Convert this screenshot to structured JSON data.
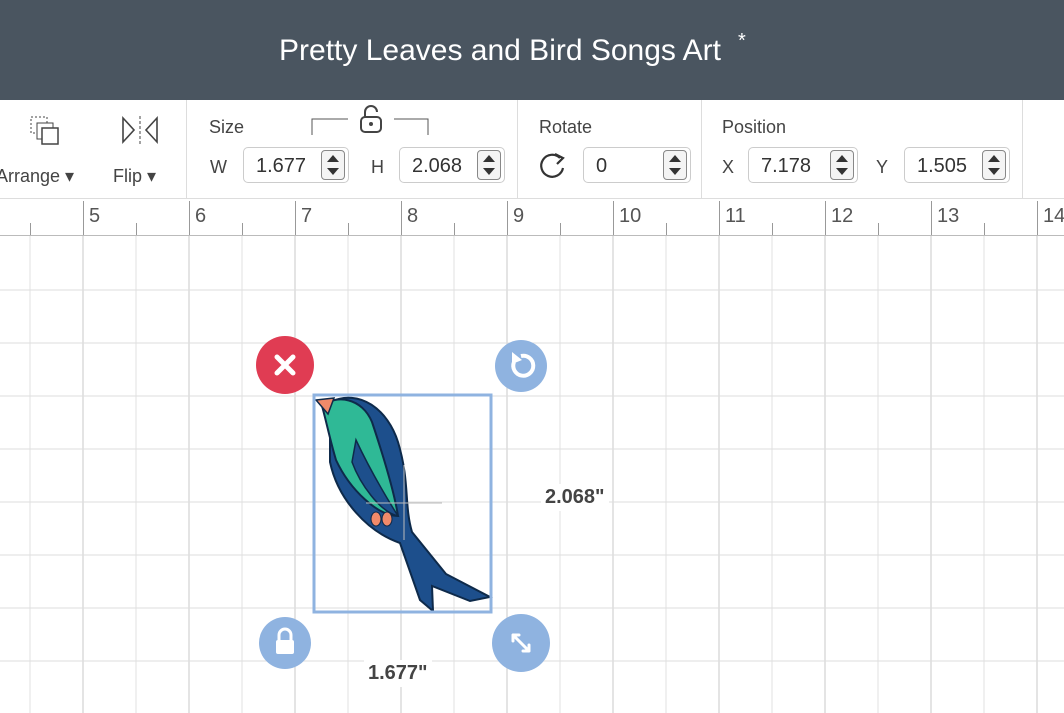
{
  "header": {
    "title": "Pretty Leaves and Bird Songs Art",
    "modified_marker": "*"
  },
  "toolbar": {
    "arrange": "Arrange",
    "flip": "Flip",
    "size": {
      "label": "Size",
      "w_label": "W",
      "w_value": "1.677",
      "h_label": "H",
      "h_value": "2.068"
    },
    "rotate": {
      "label": "Rotate",
      "value": "0"
    },
    "position": {
      "label": "Position",
      "x_label": "X",
      "x_value": "7.178",
      "y_label": "Y",
      "y_value": "1.505"
    }
  },
  "ruler": {
    "labels": [
      5,
      6,
      7,
      8,
      9,
      10,
      11,
      12,
      13,
      14
    ]
  },
  "canvas": {
    "height_label": "2.068\"",
    "width_label": "1.677\""
  }
}
